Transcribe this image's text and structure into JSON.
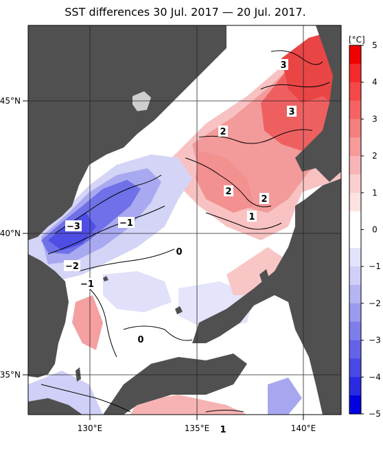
{
  "title": "SST differences 30 Jul. 2017 — 20 Jul. 2017.",
  "axes": {
    "lon_labels": [
      "130°E",
      "135°E",
      "140°E"
    ],
    "lat_labels": [
      "45°N",
      "40°N",
      "35°N"
    ]
  },
  "colorbar": {
    "unit": "[°C]",
    "ticks": [
      "5",
      "4",
      "3",
      "2",
      "1",
      "0",
      "−1",
      "−2",
      "−3",
      "−4",
      "−5"
    ],
    "colors_top_to_bottom": [
      "#f00000",
      "#f52a2a",
      "#f54848",
      "#f56363",
      "#f57e7e",
      "#f79a9a",
      "#f9b5b5",
      "#fbcfcf",
      "#fde2e2",
      "#ffffff",
      "#ffffff",
      "#e3e3fb",
      "#cfcff7",
      "#b5b5f3",
      "#9a9aef",
      "#7e7eeb",
      "#6363e8",
      "#4848e5",
      "#2a2ae2",
      "#0000e0"
    ]
  },
  "contour_labels": [
    "3",
    "3",
    "2",
    "2",
    "2",
    "1",
    "−3",
    "−1",
    "−2",
    "−1",
    "0",
    "0",
    "1"
  ],
  "colors": {
    "land": "#505050",
    "warm_strong": "#ef4a4a",
    "warm": "#f59595",
    "warm_light": "#fbd6d6",
    "neutral": "#ffffff",
    "cool_light": "#dcdcf8",
    "cool": "#9a9aef",
    "cool_strong": "#5a5ae6"
  }
}
